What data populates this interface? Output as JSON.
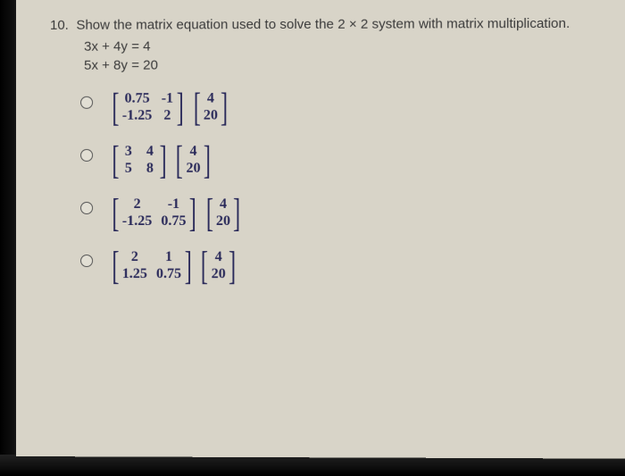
{
  "question": {
    "number": "10.",
    "text": "Show the matrix equation used to solve the 2 × 2 system with matrix multiplication.",
    "eq1": "3x + 4y = 4",
    "eq2": "5x + 8y = 20"
  },
  "options": [
    {
      "m1": [
        [
          "0.75",
          "-1"
        ],
        [
          "-1.25",
          "2"
        ]
      ],
      "m2": [
        [
          "4"
        ],
        [
          "20"
        ]
      ]
    },
    {
      "m1": [
        [
          "3",
          "4"
        ],
        [
          "5",
          "8"
        ]
      ],
      "m2": [
        [
          "4"
        ],
        [
          "20"
        ]
      ]
    },
    {
      "m1": [
        [
          "2",
          "-1"
        ],
        [
          "-1.25",
          "0.75"
        ]
      ],
      "m2": [
        [
          "4"
        ],
        [
          "20"
        ]
      ]
    },
    {
      "m1": [
        [
          "2",
          "1"
        ],
        [
          "1.25",
          "0.75"
        ]
      ],
      "m2": [
        [
          "4"
        ],
        [
          "20"
        ]
      ]
    }
  ],
  "style": {
    "bg": "#d8d4c8",
    "text_color": "#3a3a3a",
    "matrix_color": "#2a2a5a",
    "frame_color": "#000000"
  }
}
